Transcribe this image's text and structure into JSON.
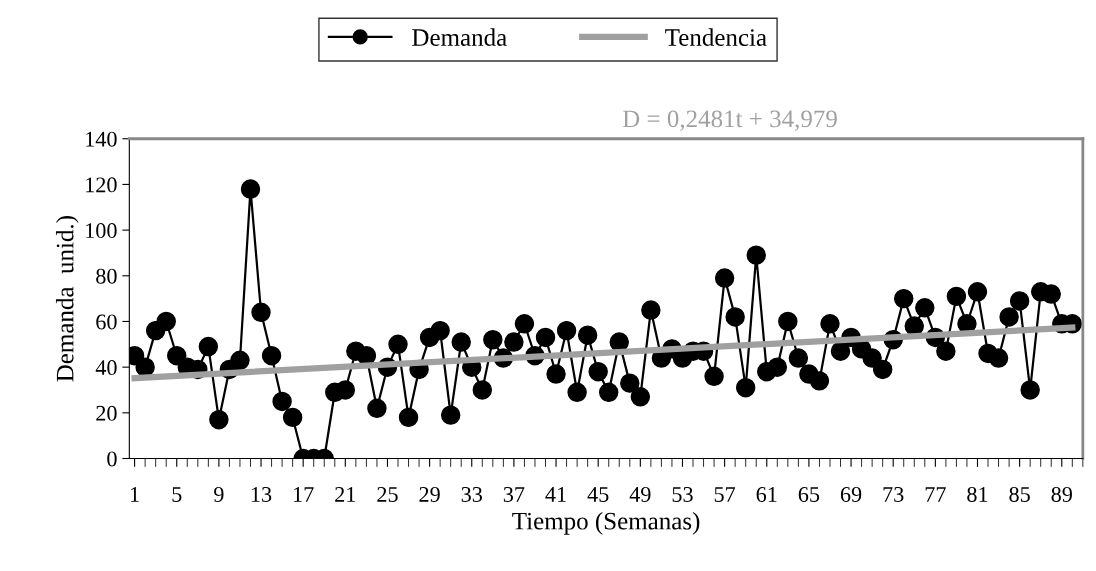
{
  "chart_data": {
    "type": "line",
    "xlabel": "Tiempo (Semanas)",
    "ylabel": "Demanda  unid.)",
    "x": [
      1,
      2,
      3,
      4,
      5,
      6,
      7,
      8,
      9,
      10,
      11,
      12,
      13,
      14,
      15,
      16,
      17,
      18,
      19,
      20,
      21,
      22,
      23,
      24,
      25,
      26,
      27,
      28,
      29,
      30,
      31,
      32,
      33,
      34,
      35,
      36,
      37,
      38,
      39,
      40,
      41,
      42,
      43,
      44,
      45,
      46,
      47,
      48,
      49,
      50,
      51,
      52,
      53,
      54,
      55,
      56,
      57,
      58,
      59,
      60,
      61,
      62,
      63,
      64,
      65,
      66,
      67,
      68,
      69,
      70,
      71,
      72,
      73,
      74,
      75,
      76,
      77,
      78,
      79,
      80,
      81,
      82,
      83,
      84,
      85,
      86,
      87,
      88,
      89,
      90
    ],
    "series": [
      {
        "name": "Demanda",
        "color": "#000000",
        "marker": "circle",
        "values": [
          45,
          40,
          56,
          60,
          45,
          40,
          39,
          49,
          17,
          39,
          43,
          118,
          64,
          45,
          25,
          18,
          0,
          0,
          0,
          29,
          30,
          47,
          45,
          22,
          40,
          50,
          18,
          39,
          53,
          56,
          19,
          51,
          40,
          30,
          52,
          44,
          51,
          59,
          45,
          53,
          37,
          56,
          29,
          54,
          38,
          29,
          51,
          33,
          27,
          65,
          44,
          48,
          44,
          47,
          47,
          36,
          79,
          62,
          31,
          89,
          38,
          40,
          60,
          44,
          37,
          34,
          59,
          47,
          53,
          48,
          44,
          39,
          52,
          70,
          58,
          66,
          53,
          47,
          71,
          59,
          73,
          46,
          44,
          62,
          69,
          30,
          73,
          72,
          59,
          59
        ]
      },
      {
        "name": "Tendencia",
        "type": "line",
        "color": "#a0a0a0",
        "marker": "none",
        "x": [
          1,
          90
        ],
        "values": [
          35.2,
          57.3
        ]
      }
    ],
    "annotations": [
      "D = 0,2481t + 34,979"
    ],
    "xlim": [
      0.5,
      91
    ],
    "ylim": [
      0,
      140
    ],
    "xticks": [
      1,
      5,
      9,
      13,
      17,
      21,
      25,
      29,
      33,
      37,
      41,
      45,
      49,
      53,
      57,
      61,
      65,
      69,
      73,
      77,
      81,
      85,
      89
    ],
    "yticks": [
      0,
      20,
      40,
      60,
      80,
      100,
      120,
      140
    ],
    "grid": false,
    "legend": "top"
  }
}
